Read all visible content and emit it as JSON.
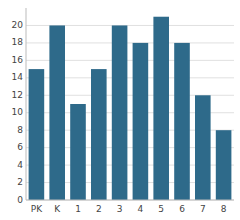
{
  "chart_data": {
    "type": "bar",
    "categories": [
      "PK",
      "K",
      "1",
      "2",
      "3",
      "4",
      "5",
      "6",
      "7",
      "8"
    ],
    "values": [
      15,
      20,
      11,
      15,
      20,
      18,
      21,
      18,
      12,
      8
    ],
    "color": "#2e6a8a",
    "ylim": [
      0,
      22
    ],
    "yticks": [
      0,
      2,
      4,
      6,
      8,
      10,
      12,
      14,
      16,
      18,
      20
    ],
    "grid": true
  }
}
